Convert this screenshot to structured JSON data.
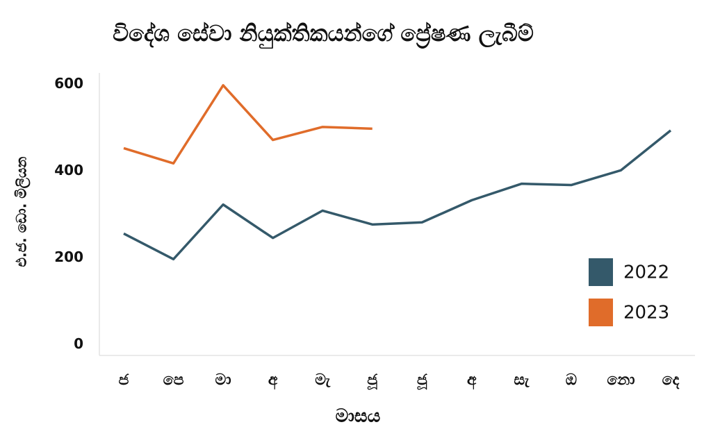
{
  "chart_data": {
    "type": "line",
    "title": "විදේශ සේවා නියුක්තිකයන්ගේ ප්‍රේෂණ ලැබීම්",
    "x_label": "මාසය",
    "y_label": "එ.ජ. ඩො. මිලියන",
    "categories": [
      "ජ",
      "පෙ",
      "මා",
      "අ",
      "මැ",
      "ජූ",
      "ජූ",
      "අ",
      "සැ",
      "ඔ",
      "නො",
      "දෙ"
    ],
    "series": [
      {
        "name": "2022",
        "color": "#34596a",
        "values": [
          256,
          197,
          323,
          246,
          309,
          277,
          282,
          333,
          371,
          368,
          402,
          494
        ]
      },
      {
        "name": "2023",
        "color": "#e06c2a",
        "values": [
          453,
          418,
          598,
          472,
          502,
          498,
          null,
          null,
          null,
          null,
          null,
          null
        ]
      }
    ],
    "ylim": [
      -25,
      625
    ],
    "yticks": [
      0,
      200,
      400,
      600
    ],
    "legend": "lower right",
    "grid": false
  }
}
